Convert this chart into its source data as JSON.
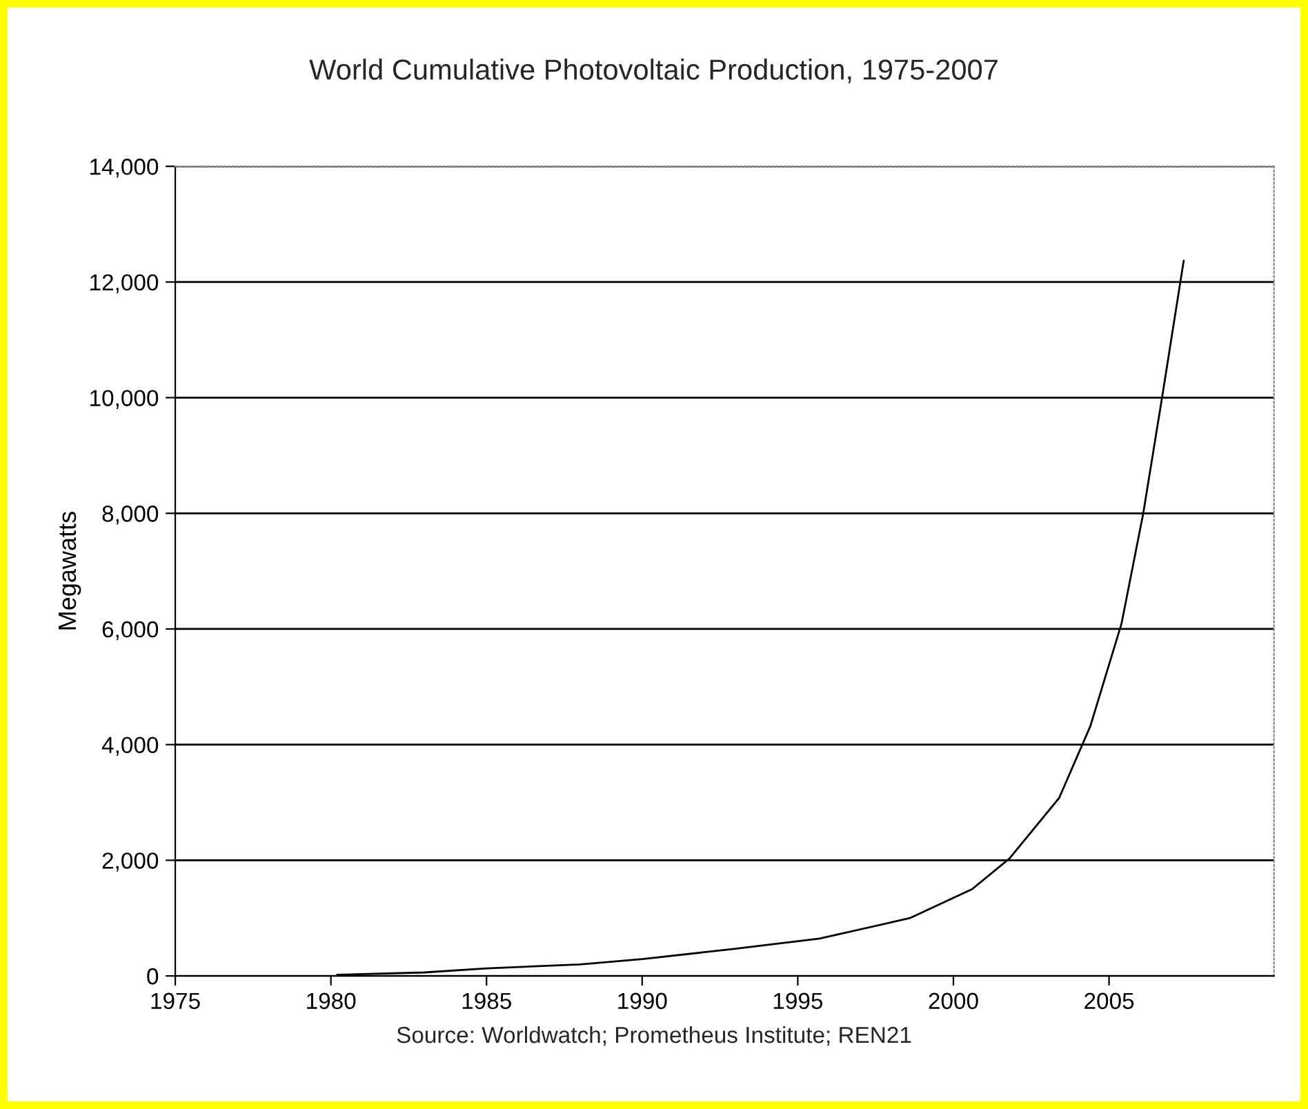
{
  "chart_data": {
    "type": "line",
    "title": "World Cumulative Photovoltaic Production, 1975-2007",
    "ylabel": "Megawatts",
    "annotations": [
      "Source: Worldwatch; Prometheus Institute; REN21"
    ],
    "series": [
      {
        "color": "#000000",
        "x": [
          1980.2,
          1983,
          1985,
          1988,
          1990,
          1993,
          1995.7,
          1998.6,
          2000.6,
          2001.8,
          2003.4,
          2004.4,
          2005.4,
          2006.1,
          2006.7,
          2007.4
        ],
        "values": [
          20,
          60,
          130,
          200,
          290,
          470,
          645,
          1000,
          1500,
          2030,
          3080,
          4320,
          6090,
          8000,
          9990,
          12370
        ]
      }
    ],
    "xlim": [
      1975,
      2010.3
    ],
    "xticks": [
      1975,
      1980,
      1985,
      1990,
      1995,
      2000,
      2005
    ],
    "ylim": [
      0,
      14000
    ],
    "yticks": [
      0,
      {
        "value": 2000,
        "label": "2,000"
      },
      {
        "value": 4000,
        "label": "4,000"
      },
      {
        "value": 6000,
        "label": "6,000"
      },
      {
        "value": 8000,
        "label": "8,000"
      },
      {
        "value": 10000,
        "label": "10,000"
      },
      {
        "value": 12000,
        "label": "12,000"
      },
      {
        "value": 14000,
        "label": "14,000"
      }
    ],
    "grid": "y",
    "marker": "none",
    "line_style": "solid",
    "legend": false
  }
}
